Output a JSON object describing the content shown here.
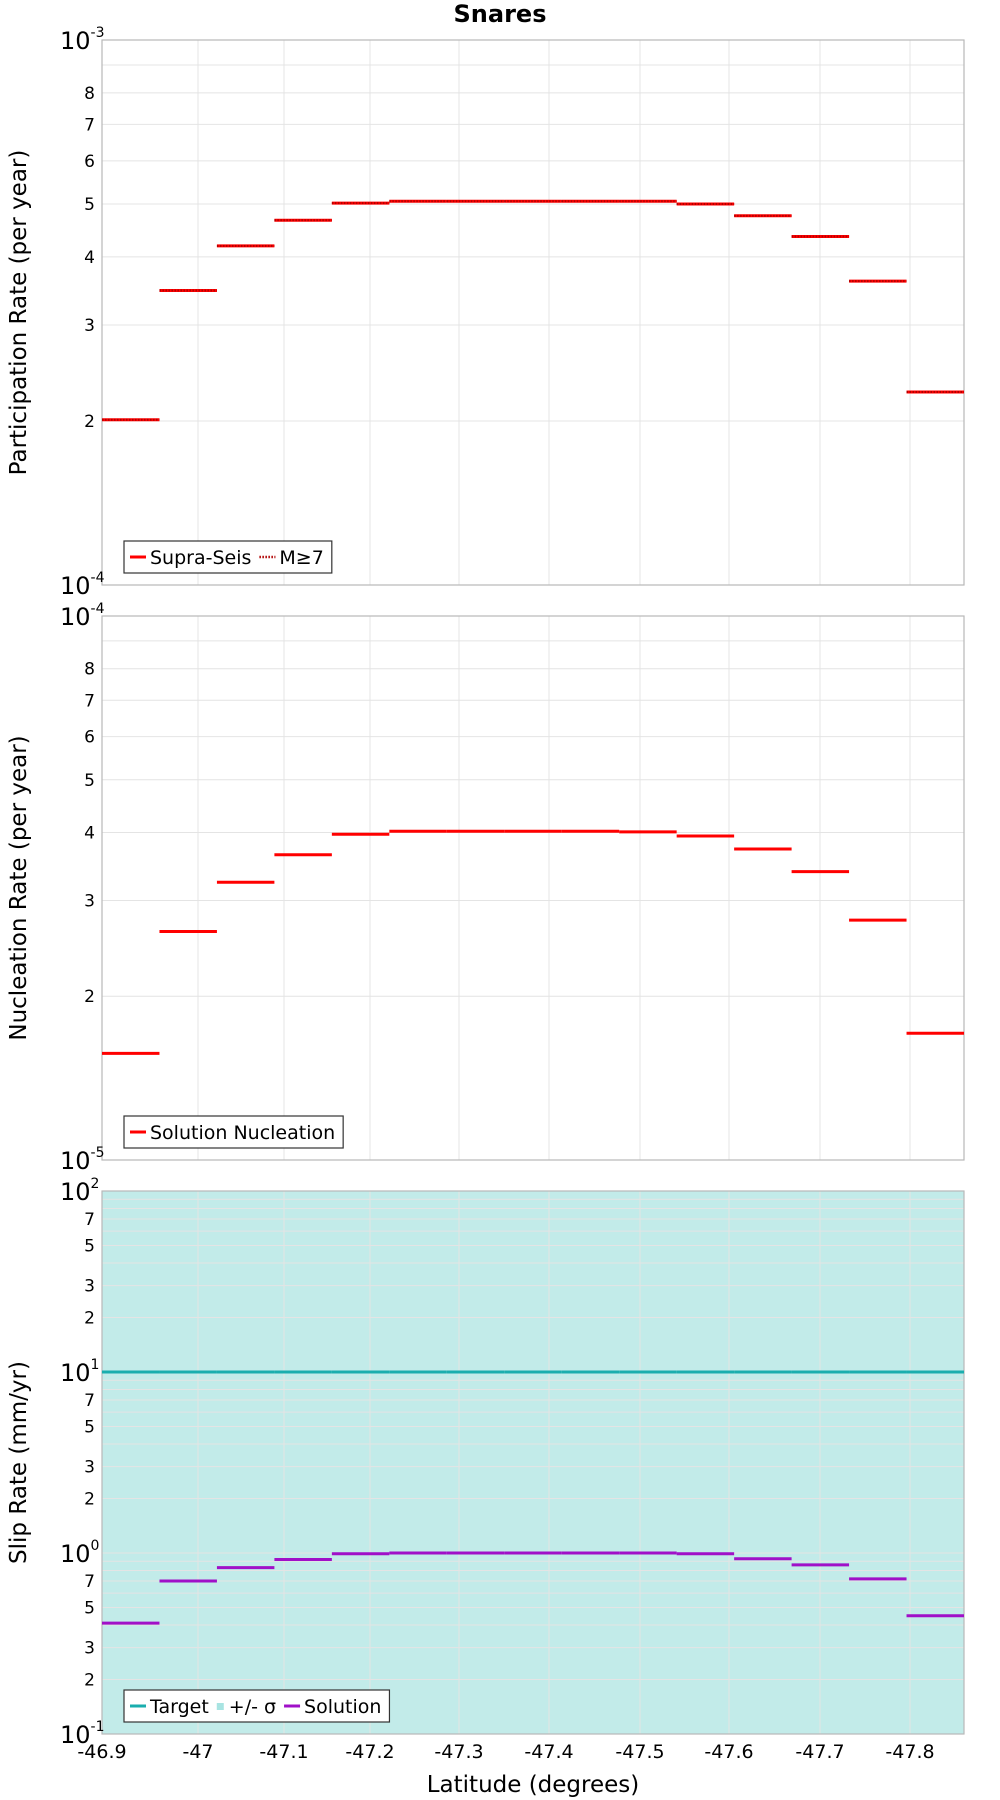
{
  "title": "Snares",
  "xlabel": "Latitude (degrees)",
  "colors": {
    "red": "#ff0000",
    "cyan": "#1aaeae",
    "band": "#c2ebe9",
    "purple": "#a010c8",
    "grid": "#e4e4e4"
  },
  "x_ticks": [
    "-46.9",
    "-47",
    "-47.1",
    "-47.2",
    "-47.3",
    "-47.4",
    "-47.5",
    "-47.6",
    "-47.7",
    "-47.8"
  ],
  "chart_data": [
    {
      "type": "line",
      "ylabel": "Participation Rate (per year)",
      "yscale": "log",
      "ylim": [
        0.0001,
        0.001
      ],
      "xlim": [
        -46.9,
        -47.86
      ],
      "y_major_ticks": [
        {
          "base": "10",
          "exp": "-4"
        },
        {
          "base": "10",
          "exp": "-3"
        }
      ],
      "y_minor_ticks": [
        "2",
        "3",
        "4",
        "5",
        "6",
        "7",
        "8"
      ],
      "legend": [
        "Supra-Seis",
        "M≥7"
      ],
      "legend_position": "bottom-left",
      "series": [
        {
          "name": "Supra-Seis",
          "style": "solid",
          "values": [
            0.000201,
            0.000347,
            0.000419,
            0.000467,
            0.000502,
            0.000506,
            0.000506,
            0.000506,
            0.000506,
            0.000506,
            0.0005,
            0.000476,
            0.000436,
            0.000361,
            0.000226
          ]
        },
        {
          "name": "M≥7",
          "style": "dotted",
          "values": [
            0.000201,
            0.000347,
            0.000419,
            0.000467,
            0.000502,
            0.000506,
            0.000506,
            0.000506,
            0.000506,
            0.000506,
            0.0005,
            0.000476,
            0.000436,
            0.000361,
            0.000226
          ]
        }
      ]
    },
    {
      "type": "line",
      "ylabel": "Nucleation Rate (per year)",
      "yscale": "log",
      "ylim": [
        1e-05,
        0.0001
      ],
      "xlim": [
        -46.9,
        -47.86
      ],
      "y_major_ticks": [
        {
          "base": "10",
          "exp": "-5"
        },
        {
          "base": "10",
          "exp": "-4"
        }
      ],
      "y_minor_ticks": [
        "2",
        "3",
        "4",
        "5",
        "6",
        "7",
        "8"
      ],
      "legend": [
        "Solution Nucleation"
      ],
      "legend_position": "bottom-left",
      "series": [
        {
          "name": "Solution Nucleation",
          "style": "solid",
          "values": [
            1.57e-05,
            2.63e-05,
            3.24e-05,
            3.64e-05,
            3.97e-05,
            4.02e-05,
            4.02e-05,
            4.02e-05,
            4.02e-05,
            4.01e-05,
            3.94e-05,
            3.73e-05,
            3.39e-05,
            2.76e-05,
            1.71e-05
          ]
        }
      ]
    },
    {
      "type": "line",
      "ylabel": "Slip Rate (mm/yr)",
      "yscale": "log",
      "ylim": [
        0.1,
        100
      ],
      "xlim": [
        -46.9,
        -47.86
      ],
      "y_major_ticks": [
        {
          "base": "10",
          "exp": "-1"
        },
        {
          "base": "10",
          "exp": "0"
        },
        {
          "base": "10",
          "exp": "1"
        },
        {
          "base": "10",
          "exp": "2"
        }
      ],
      "y_minor_ticks": [
        "2",
        "3",
        "5",
        "7"
      ],
      "legend": [
        "Target",
        "+/- σ",
        "Solution"
      ],
      "legend_position": "bottom-left",
      "band": [
        0.1,
        100
      ],
      "series": [
        {
          "name": "Target",
          "style": "solid",
          "values": [
            10,
            10,
            10,
            10,
            10,
            10,
            10,
            10,
            10,
            10,
            10,
            10,
            10,
            10,
            10
          ]
        },
        {
          "name": "Solution",
          "style": "solid",
          "values": [
            0.41,
            0.7,
            0.83,
            0.92,
            0.99,
            1.0,
            1.0,
            1.0,
            1.0,
            1.0,
            0.99,
            0.93,
            0.86,
            0.72,
            0.45
          ]
        }
      ]
    }
  ]
}
